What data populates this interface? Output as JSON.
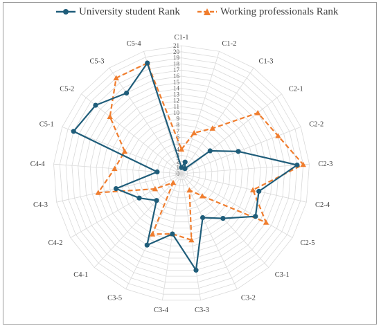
{
  "legend": {
    "series1_label": "University student Rank",
    "series2_label": "Working professionals Rank"
  },
  "colors": {
    "series1": "#1f5d7a",
    "series2": "#f07d2e",
    "grid": "#d9d9d9",
    "axis_text": "#595959"
  },
  "chart_data": {
    "type": "radar",
    "categories": [
      "C1-1",
      "C1-2",
      "C1-3",
      "C2-1",
      "C2-2",
      "C2-3",
      "C2-4",
      "C2-5",
      "C3-1",
      "C3-2",
      "C3-3",
      "C3-4",
      "C3-5",
      "C4-1",
      "C4-2",
      "C4-3",
      "C4-4",
      "C5-1",
      "C5-2",
      "C5-3",
      "C5-4"
    ],
    "radial_ticks": [
      0,
      1,
      2,
      3,
      4,
      5,
      6,
      7,
      8,
      9,
      10,
      11,
      12,
      13,
      14,
      15,
      16,
      17,
      18,
      19,
      20,
      21
    ],
    "rlim": [
      0,
      21
    ],
    "series": [
      {
        "name": "University student Rank",
        "values": [
          1,
          2,
          1,
          6,
          10,
          19,
          13,
          14,
          10,
          8,
          16,
          10,
          13,
          6,
          8,
          11,
          4,
          19,
          18,
          16,
          19
        ]
      },
      {
        "name": "Working professionals Rank",
        "values": [
          4,
          7,
          9,
          16,
          17,
          20,
          12,
          16,
          5,
          3,
          11,
          10,
          11,
          2,
          5,
          14,
          11,
          10,
          15,
          19,
          19
        ]
      }
    ],
    "legend_position": "top",
    "grid": true
  }
}
